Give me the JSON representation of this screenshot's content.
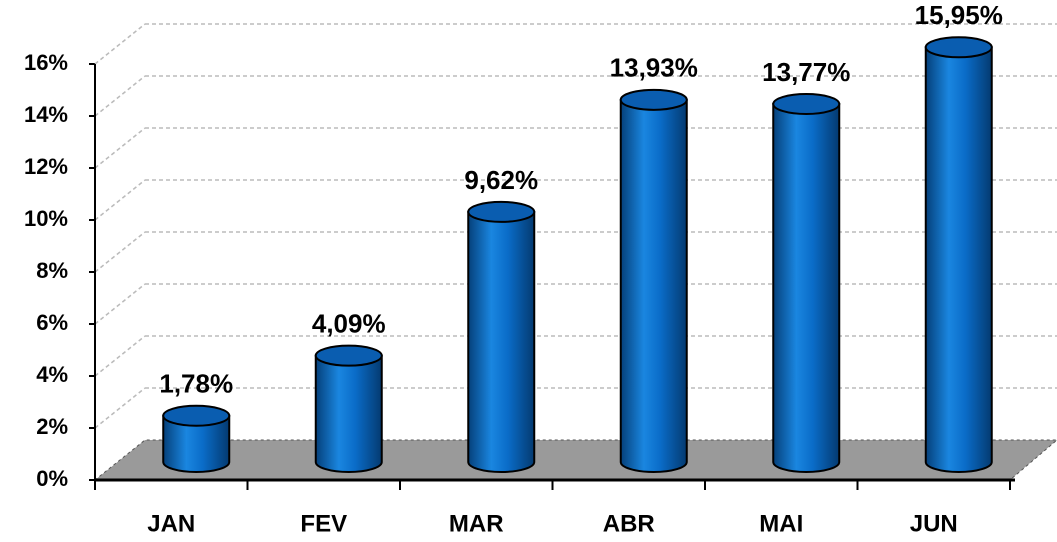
{
  "chart_data": {
    "type": "bar3d",
    "categories": [
      "JAN",
      "FEV",
      "MAR",
      "ABR",
      "MAI",
      "JUN"
    ],
    "values": [
      1.78,
      4.09,
      9.62,
      13.93,
      13.77,
      15.95
    ],
    "value_labels": [
      "1,78%",
      "4,09%",
      "9,62%",
      "13,93%",
      "13,77%",
      "15,95%"
    ],
    "color": "#0a6cc8",
    "ylim": [
      0,
      16
    ],
    "yticks": [
      {
        "value": 0,
        "label": "0%"
      },
      {
        "value": 2,
        "label": "2%"
      },
      {
        "value": 4,
        "label": "4%"
      },
      {
        "value": 6,
        "label": "6%"
      },
      {
        "value": 8,
        "label": "8%"
      },
      {
        "value": 10,
        "label": "10%"
      },
      {
        "value": 12,
        "label": "12%"
      },
      {
        "value": 14,
        "label": "14%"
      },
      {
        "value": 16,
        "label": "16%"
      }
    ],
    "grid": true
  }
}
